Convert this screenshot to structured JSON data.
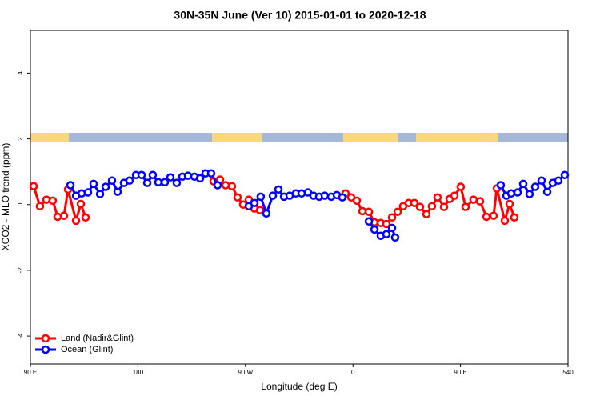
{
  "chart_data": {
    "type": "line",
    "title": "30N-35N June (Ver 10)   2015-01-01 to 2020-12-18",
    "x_label": "Longitude (deg E)",
    "y_label": "XCO2 - MLO trend (ppm)",
    "xlim": [
      90,
      540
    ],
    "ylim": [
      -4.85,
      5.3
    ],
    "xticks": [
      {
        "value": 90,
        "label": "90 E"
      },
      180,
      {
        "value": 270,
        "label": "90 W"
      },
      {
        "value": 360,
        "label": "0"
      },
      {
        "value": 450,
        "label": "90 E"
      },
      540
    ],
    "yticks": [
      -4,
      -2,
      0,
      2,
      4
    ],
    "legend": "bottom-left",
    "series": [
      {
        "name": "Land (Nadir&Glint)",
        "color": "#ff0000",
        "x": [
          92.7,
          98.0,
          103.4,
          108.7,
          112.8,
          118.1,
          121.5,
          128.2,
          132.2,
          136.2,
          null,
          243.3,
          248.7,
          253.4,
          258.7,
          263.4,
          268.1,
          272.8,
          277.5,
          282.2,
          null,
          353.8,
          358.5,
          363.2,
          367.9,
          373.3,
          378.0,
          383.3,
          388.0,
          392.7,
          397.4,
          402.0,
          406.7,
          411.4,
          416.1,
          421.5,
          426.1,
          430.8,
          436.2,
          440.9,
          444.9,
          450.2,
          454.3,
          460.9,
          466.3,
          471.7,
          477.7,
          480.4,
          487.1,
          491.1,
          495.1
        ],
        "values": [
          0.56,
          -0.05,
          0.15,
          0.12,
          -0.37,
          -0.34,
          0.46,
          -0.49,
          0.02,
          -0.39,
          null,
          0.71,
          0.76,
          0.59,
          0.56,
          0.22,
          0.0,
          0.15,
          -0.12,
          -0.17,
          null,
          0.34,
          0.22,
          0.12,
          -0.2,
          -0.22,
          -0.54,
          -0.56,
          -0.59,
          -0.39,
          -0.22,
          -0.05,
          0.05,
          0.05,
          -0.07,
          -0.29,
          -0.05,
          0.22,
          -0.07,
          0.17,
          0.27,
          0.54,
          -0.07,
          0.15,
          0.1,
          -0.37,
          -0.34,
          0.49,
          -0.49,
          0.02,
          -0.39
        ]
      },
      {
        "name": "Ocean (Glint)",
        "color": "#0000ff",
        "x": [
          123.5,
          128.2,
          132.9,
          138.2,
          142.9,
          148.3,
          153.0,
          158.3,
          163.0,
          168.3,
          173.0,
          178.4,
          183.1,
          187.8,
          192.4,
          197.1,
          202.5,
          207.2,
          212.5,
          217.2,
          221.9,
          227.3,
          232.0,
          236.6,
          241.3,
          246.7,
          null,
          272.8,
          277.5,
          282.8,
          287.5,
          292.9,
          297.6,
          302.3,
          307.0,
          312.3,
          317.0,
          322.3,
          327.0,
          331.7,
          336.4,
          341.8,
          346.5,
          351.1,
          null,
          373.3,
          378.0,
          383.3,
          388.0,
          392.7,
          395.3,
          null,
          483.7,
          488.4,
          492.4,
          497.8,
          502.5,
          507.8,
          512.5,
          517.9,
          522.6,
          527.3,
          531.9,
          537.3
        ],
        "values": [
          0.59,
          0.27,
          0.34,
          0.37,
          0.63,
          0.32,
          0.54,
          0.73,
          0.39,
          0.66,
          0.73,
          0.9,
          0.9,
          0.66,
          0.9,
          0.68,
          0.68,
          0.83,
          0.66,
          0.85,
          0.88,
          0.85,
          0.8,
          0.95,
          0.95,
          0.59,
          null,
          -0.05,
          0.05,
          0.24,
          -0.27,
          0.27,
          0.46,
          0.24,
          0.27,
          0.34,
          0.34,
          0.37,
          0.27,
          0.24,
          0.27,
          0.24,
          0.29,
          0.22,
          null,
          -0.51,
          -0.76,
          -0.95,
          -0.9,
          -0.71,
          -1.0,
          null,
          0.59,
          0.27,
          0.34,
          0.37,
          0.63,
          0.32,
          0.54,
          0.73,
          0.39,
          0.66,
          0.73,
          0.9
        ]
      }
    ]
  }
}
